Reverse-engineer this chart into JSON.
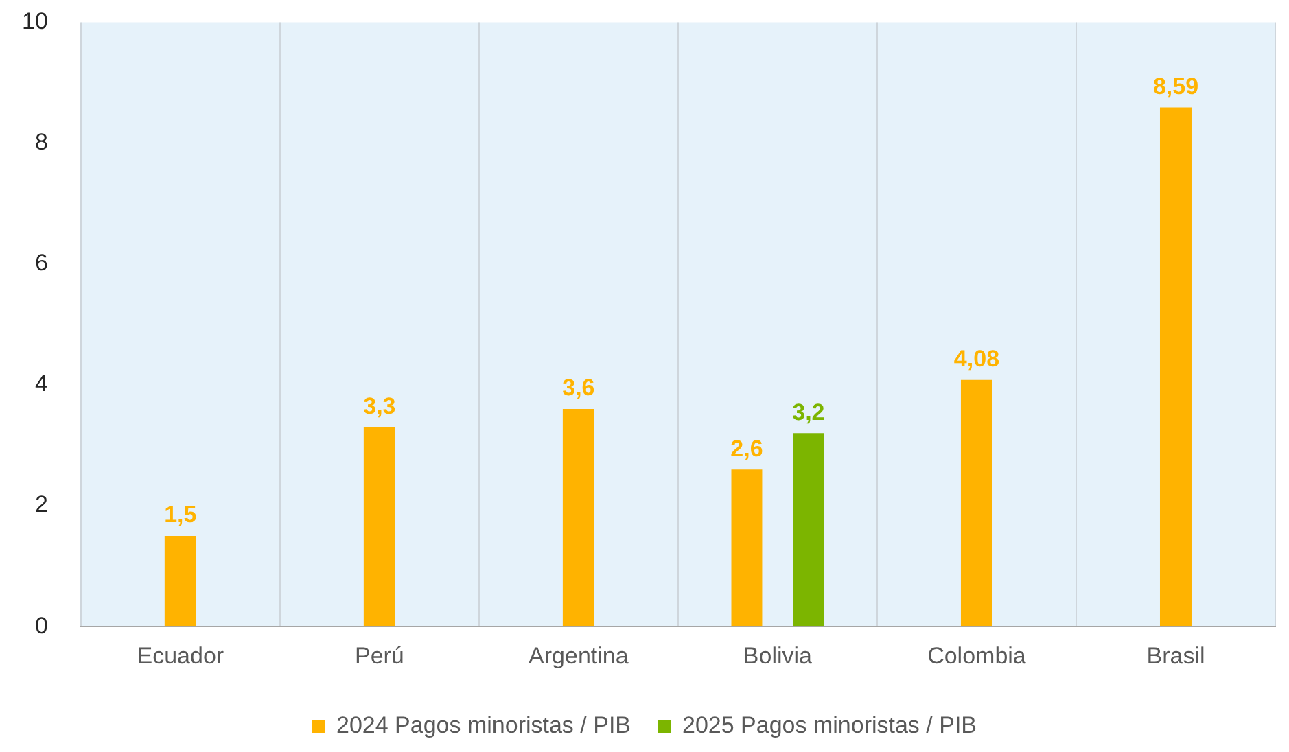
{
  "chart_data": {
    "type": "bar",
    "categories": [
      "Ecuador",
      "Perú",
      "Argentina",
      "Bolivia",
      "Colombia",
      "Brasil"
    ],
    "series": [
      {
        "name": "2024 Pagos minoristas / PIB",
        "color": "#ffb300",
        "values": [
          1.5,
          3.3,
          3.6,
          2.6,
          4.08,
          8.59
        ],
        "value_labels": [
          "1,5",
          "3,3",
          "3,6",
          "2,6",
          "4,08",
          "8,59"
        ]
      },
      {
        "name": "2025 Pagos minoristas / PIB",
        "color": "#7cb500",
        "values": [
          null,
          null,
          null,
          3.2,
          null,
          null
        ],
        "value_labels": [
          null,
          null,
          null,
          "3,2",
          null,
          null
        ]
      }
    ],
    "ylim": [
      0,
      10
    ],
    "yticks": [
      0,
      2,
      4,
      6,
      8,
      10
    ],
    "grid": "x",
    "legend": "bottom"
  }
}
